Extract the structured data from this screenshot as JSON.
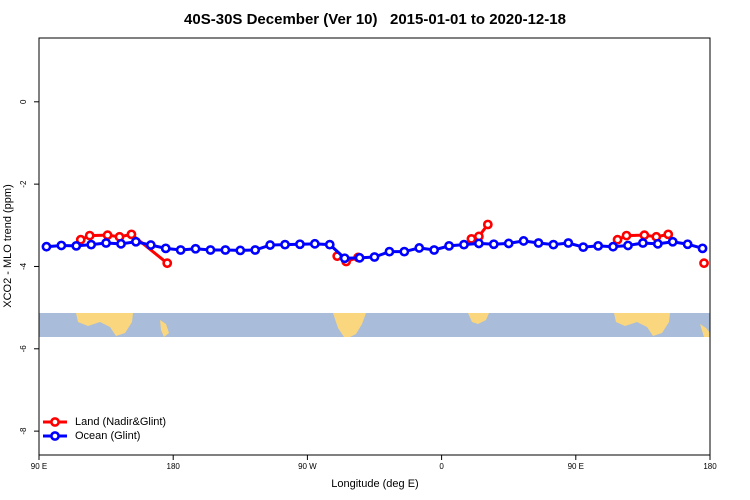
{
  "chart_data": {
    "type": "line",
    "title": "40S-30S December (Ver 10)   2015-01-01 to 2020-12-18",
    "xlabel": "Longitude (deg E)",
    "ylabel": "XCO2 - MLO trend (ppm)",
    "xlim": [
      90,
      540
    ],
    "ylim": [
      -8.58,
      1.55
    ],
    "xticks": [
      {
        "value": 90,
        "label": "90 E"
      },
      {
        "value": 180,
        "label": "180"
      },
      {
        "value": 270,
        "label": "90 W"
      },
      {
        "value": 360,
        "label": "0"
      },
      {
        "value": 450,
        "label": "90 E"
      },
      {
        "value": 540,
        "label": "180"
      }
    ],
    "yticks": [
      0,
      -2,
      -4,
      -6,
      -8
    ],
    "legend": "bottom-left",
    "series": [
      {
        "name": "Land (Nadir&Glint)",
        "color": "#ff0000",
        "x": [
          118,
          124,
          136,
          144,
          152,
          176,
          null,
          290,
          296,
          304,
          null,
          380,
          385,
          391,
          null,
          478,
          484,
          496,
          504,
          512,
          null,
          536
        ],
        "values": [
          -3.35,
          -3.25,
          -3.24,
          -3.28,
          -3.22,
          -3.92,
          null,
          -3.75,
          -3.88,
          -3.78,
          null,
          -3.33,
          -3.27,
          -2.98,
          null,
          -3.35,
          -3.25,
          -3.24,
          -3.28,
          -3.22,
          null,
          -3.92
        ]
      },
      {
        "name": "Ocean (Glint)",
        "color": "#0000ff",
        "x": [
          95,
          105,
          115,
          125,
          135,
          145,
          155,
          165,
          175,
          185,
          195,
          205,
          215,
          225,
          235,
          245,
          255,
          265,
          275,
          285,
          295,
          305,
          315,
          325,
          335,
          345,
          355,
          365,
          375,
          385,
          395,
          405,
          415,
          425,
          435,
          445,
          455,
          465,
          475,
          485,
          495,
          505,
          515,
          525,
          535
        ],
        "values": [
          -3.52,
          -3.49,
          -3.5,
          -3.47,
          -3.43,
          -3.45,
          -3.4,
          -3.48,
          -3.56,
          -3.6,
          -3.57,
          -3.6,
          -3.6,
          -3.61,
          -3.6,
          -3.48,
          -3.47,
          -3.46,
          -3.45,
          -3.47,
          -3.8,
          -3.79,
          -3.77,
          -3.64,
          -3.64,
          -3.55,
          -3.6,
          -3.5,
          -3.47,
          -3.44,
          -3.46,
          -3.44,
          -3.38,
          -3.43,
          -3.47,
          -3.43,
          -3.53,
          -3.5,
          -3.52,
          -3.49,
          -3.43,
          -3.45,
          -3.4,
          -3.46,
          -3.56
        ]
      }
    ]
  }
}
